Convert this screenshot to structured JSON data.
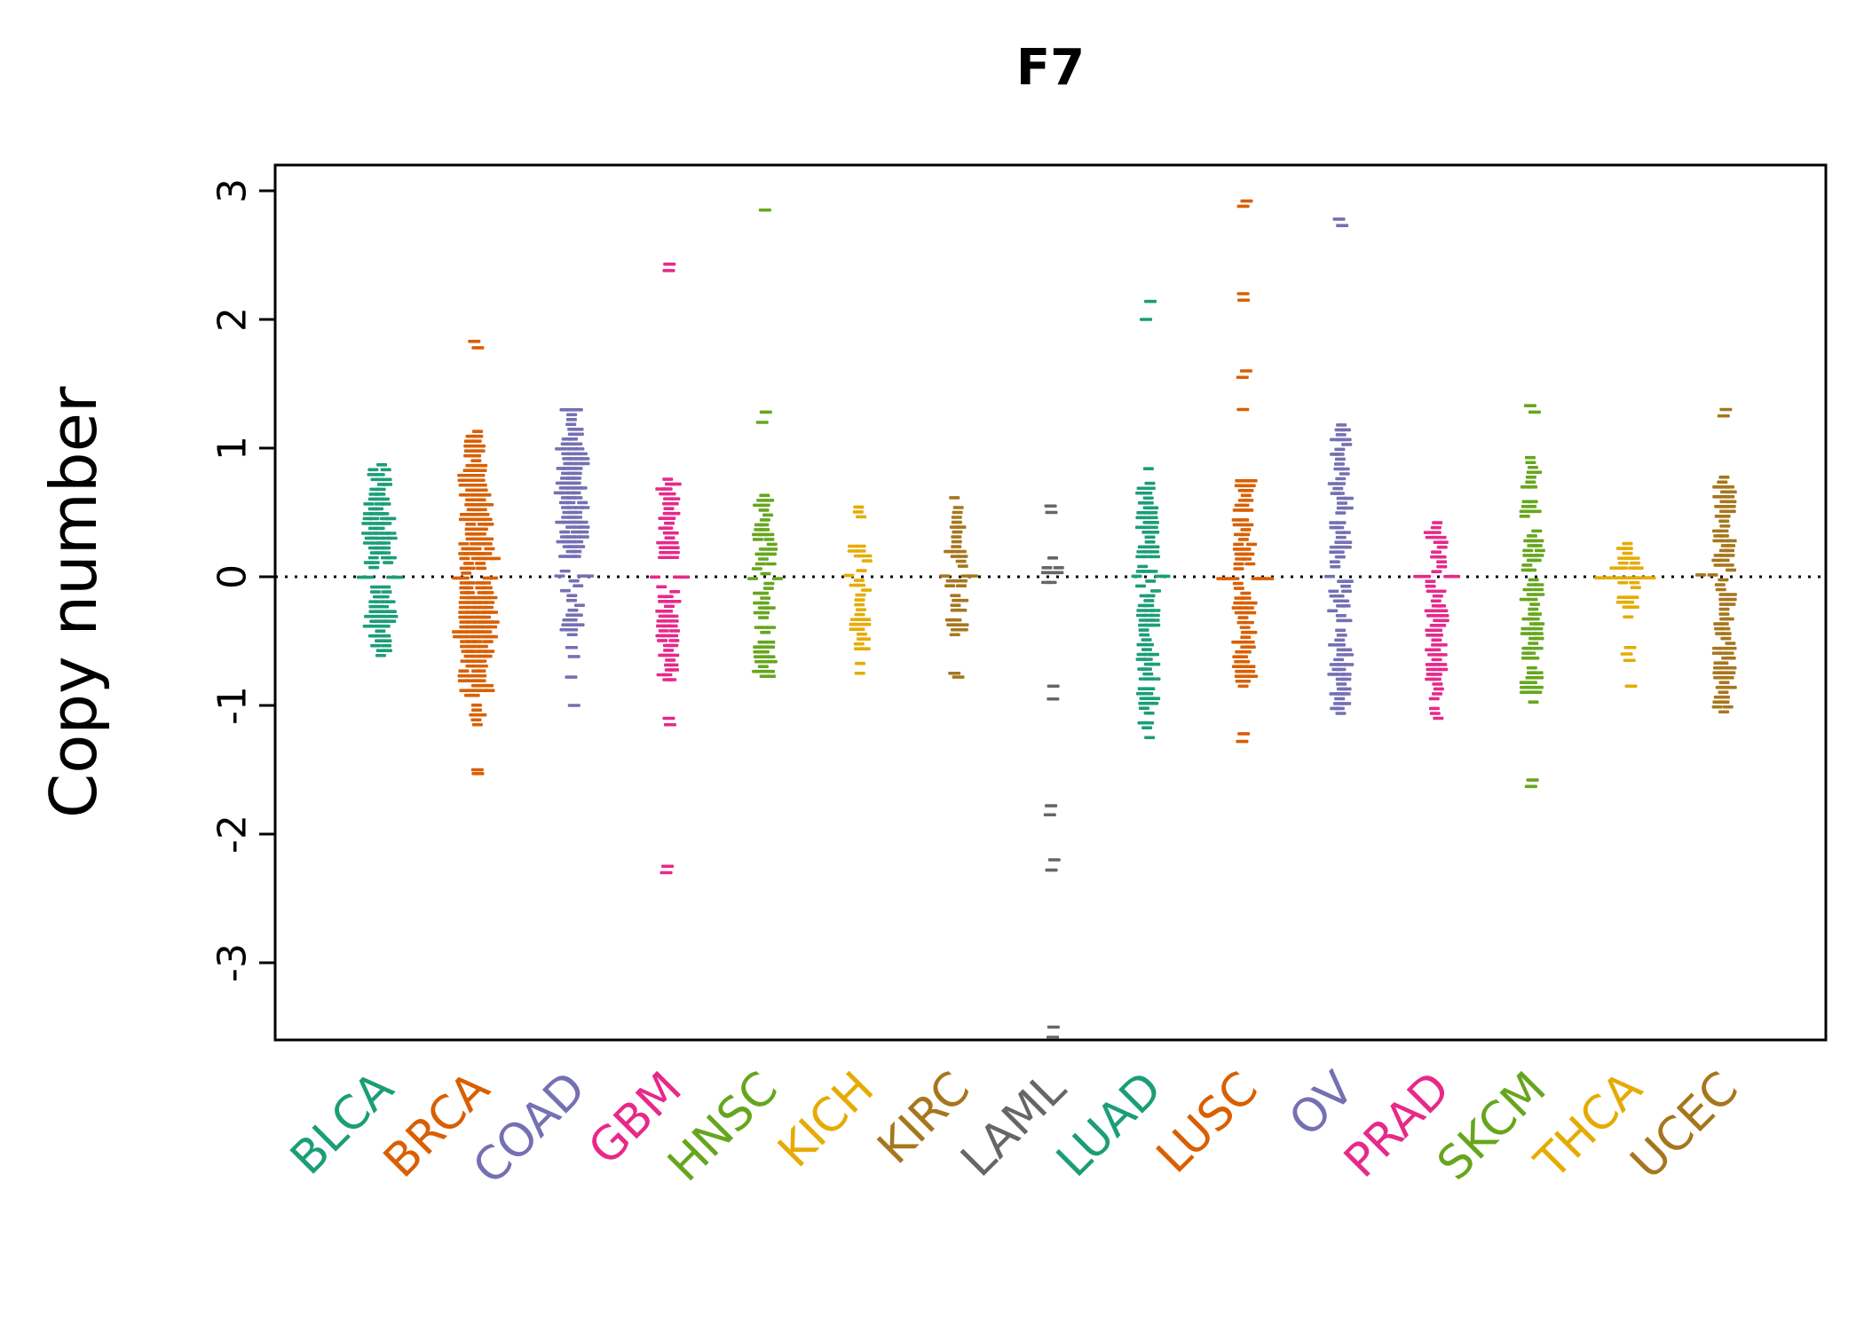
{
  "chart_data": {
    "type": "beeswarm",
    "title": "F7",
    "ylabel": "Copy number",
    "xlabel": "",
    "ylim": [
      -3.6,
      3.2
    ],
    "yticks": [
      3,
      2,
      1,
      0,
      -1,
      -2,
      -3
    ],
    "grid": "off",
    "zero_line": {
      "y": 0,
      "style": "dotted",
      "color": "#000000"
    },
    "notes": "Each group is a beeswarm of per-sample copy-number values; profile = [y value, swarm half-width px], outliers = individual extreme y values.",
    "groups": [
      {
        "label": "BLCA",
        "color": "#1B9E77",
        "zero_width": 22,
        "profile": [
          [
            -0.65,
            5
          ],
          [
            -0.5,
            9
          ],
          [
            -0.3,
            16
          ],
          [
            -0.12,
            18
          ],
          [
            0,
            13
          ],
          [
            0.12,
            16
          ],
          [
            0.3,
            18
          ],
          [
            0.55,
            14
          ],
          [
            0.75,
            9
          ],
          [
            0.92,
            5
          ]
        ],
        "outliers": []
      },
      {
        "label": "BRCA",
        "color": "#D95F02",
        "zero_width": 26,
        "profile": [
          [
            -1.15,
            6
          ],
          [
            -0.95,
            12
          ],
          [
            -0.7,
            16
          ],
          [
            -0.45,
            20
          ],
          [
            -0.2,
            22
          ],
          [
            0,
            15
          ],
          [
            0.15,
            20
          ],
          [
            0.4,
            18
          ],
          [
            0.7,
            14
          ],
          [
            0.95,
            12
          ],
          [
            1.15,
            6
          ]
        ],
        "outliers": [
          1.78,
          1.83,
          -1.5,
          -1.53
        ]
      },
      {
        "label": "COAD",
        "color": "#7570B3",
        "zero_width": 24,
        "profile": [
          [
            -0.45,
            6
          ],
          [
            -0.3,
            9
          ],
          [
            -0.15,
            11
          ],
          [
            0,
            9
          ],
          [
            0.15,
            12
          ],
          [
            0.4,
            16
          ],
          [
            0.7,
            18
          ],
          [
            0.95,
            14
          ],
          [
            1.2,
            10
          ],
          [
            1.4,
            5
          ]
        ],
        "outliers": [
          -0.55,
          -0.62,
          -0.78,
          -1.0
        ]
      },
      {
        "label": "GBM",
        "color": "#E7298A",
        "zero_width": 24,
        "profile": [
          [
            -0.8,
            7
          ],
          [
            -0.6,
            12
          ],
          [
            -0.4,
            13
          ],
          [
            -0.2,
            12
          ],
          [
            0,
            10
          ],
          [
            0.15,
            13
          ],
          [
            0.35,
            12
          ],
          [
            0.55,
            10
          ],
          [
            0.78,
            6
          ]
        ],
        "outliers": [
          2.38,
          2.43,
          -1.1,
          -1.15,
          -2.25,
          -2.3
        ]
      },
      {
        "label": "HNSC",
        "color": "#66A61E",
        "zero_width": 20,
        "profile": [
          [
            -0.85,
            5
          ],
          [
            -0.65,
            9
          ],
          [
            -0.45,
            11
          ],
          [
            -0.25,
            10
          ],
          [
            0,
            7
          ],
          [
            0.15,
            11
          ],
          [
            0.35,
            12
          ],
          [
            0.55,
            8
          ],
          [
            0.65,
            5
          ]
        ],
        "outliers": [
          1.2,
          1.28,
          2.85
        ]
      },
      {
        "label": "KICH",
        "color": "#E6AB02",
        "zero_width": 16,
        "profile": [
          [
            -0.75,
            3
          ],
          [
            -0.6,
            5
          ],
          [
            -0.5,
            9
          ],
          [
            -0.4,
            9
          ],
          [
            -0.3,
            6
          ],
          [
            -0.15,
            6
          ],
          [
            0,
            8
          ],
          [
            0.15,
            8
          ],
          [
            0.3,
            6
          ],
          [
            0.45,
            5
          ],
          [
            0.55,
            3
          ]
        ],
        "outliers": []
      },
      {
        "label": "KIRC",
        "color": "#A6761D",
        "zero_width": 22,
        "profile": [
          [
            -0.45,
            6
          ],
          [
            -0.3,
            8
          ],
          [
            -0.15,
            8
          ],
          [
            0,
            9
          ],
          [
            0.12,
            11
          ],
          [
            0.3,
            9
          ],
          [
            0.45,
            7
          ],
          [
            0.62,
            4
          ]
        ],
        "outliers": [
          -0.75,
          -0.78
        ]
      },
      {
        "label": "LAML",
        "color": "#666666",
        "zero_width": 18,
        "profile": [
          [
            -0.12,
            5
          ],
          [
            -0.05,
            8
          ],
          [
            0,
            9
          ],
          [
            0.08,
            11
          ],
          [
            0.15,
            7
          ],
          [
            0.18,
            4
          ]
        ],
        "outliers": [
          0.5,
          0.55,
          -0.85,
          -0.95,
          -1.78,
          -1.85,
          -2.2,
          -2.28,
          -3.5,
          -3.58
        ]
      },
      {
        "label": "LUAD",
        "color": "#1B9E77",
        "zero_width": 22,
        "profile": [
          [
            -1.25,
            5
          ],
          [
            -1.05,
            8
          ],
          [
            -0.85,
            10
          ],
          [
            -0.6,
            12
          ],
          [
            -0.35,
            13
          ],
          [
            -0.15,
            12
          ],
          [
            0,
            8
          ],
          [
            0.15,
            13
          ],
          [
            0.35,
            12
          ],
          [
            0.55,
            9
          ],
          [
            0.75,
            6
          ],
          [
            0.85,
            4
          ]
        ],
        "outliers": [
          2.0,
          2.14
        ]
      },
      {
        "label": "LUSC",
        "color": "#D95F02",
        "zero_width": 26,
        "profile": [
          [
            -0.85,
            8
          ],
          [
            -0.65,
            11
          ],
          [
            -0.45,
            12
          ],
          [
            -0.25,
            12
          ],
          [
            0,
            10
          ],
          [
            0.15,
            13
          ],
          [
            0.4,
            12
          ],
          [
            0.6,
            10
          ],
          [
            0.8,
            6
          ]
        ],
        "outliers": [
          2.88,
          2.92,
          2.15,
          2.2,
          1.55,
          1.6,
          1.3,
          -1.22,
          -1.28
        ]
      },
      {
        "label": "OV",
        "color": "#7570B3",
        "zero_width": 18,
        "profile": [
          [
            -1.1,
            6
          ],
          [
            -0.95,
            10
          ],
          [
            -0.75,
            10
          ],
          [
            -0.5,
            9
          ],
          [
            -0.25,
            9
          ],
          [
            0,
            10
          ],
          [
            0.2,
            12
          ],
          [
            0.45,
            11
          ],
          [
            0.7,
            10
          ],
          [
            0.95,
            10
          ],
          [
            1.2,
            6
          ]
        ],
        "outliers": [
          2.73,
          2.78
        ]
      },
      {
        "label": "PRAD",
        "color": "#E7298A",
        "zero_width": 24,
        "profile": [
          [
            -1.1,
            4
          ],
          [
            -0.95,
            5
          ],
          [
            -0.75,
            7
          ],
          [
            -0.55,
            9
          ],
          [
            -0.35,
            10
          ],
          [
            -0.15,
            10
          ],
          [
            0,
            8
          ],
          [
            0.12,
            10
          ],
          [
            0.28,
            8
          ],
          [
            0.45,
            5
          ]
        ],
        "outliers": []
      },
      {
        "label": "SKCM",
        "color": "#66A61E",
        "zero_width": 18,
        "profile": [
          [
            -1.05,
            5
          ],
          [
            -0.85,
            8
          ],
          [
            -0.6,
            9
          ],
          [
            -0.35,
            10
          ],
          [
            -0.15,
            9
          ],
          [
            0,
            6
          ],
          [
            0.15,
            10
          ],
          [
            0.4,
            11
          ],
          [
            0.65,
            9
          ],
          [
            0.85,
            6
          ],
          [
            0.95,
            4
          ]
        ],
        "outliers": [
          1.28,
          1.33,
          -1.58,
          -1.63
        ]
      },
      {
        "label": "THCA",
        "color": "#E6AB02",
        "zero_width": 34,
        "zero_solid": true,
        "profile": [
          [
            -0.35,
            4
          ],
          [
            -0.22,
            7
          ],
          [
            -0.1,
            12
          ],
          [
            0,
            18
          ],
          [
            0.1,
            12
          ],
          [
            0.22,
            7
          ],
          [
            0.35,
            4
          ]
        ],
        "outliers": [
          -0.55,
          -0.6,
          -0.65,
          -0.85
        ]
      },
      {
        "label": "UCEC",
        "color": "#A6761D",
        "zero_width": 26,
        "profile": [
          [
            -1.05,
            6
          ],
          [
            -0.85,
            9
          ],
          [
            -0.6,
            10
          ],
          [
            -0.35,
            11
          ],
          [
            -0.15,
            11
          ],
          [
            0,
            8
          ],
          [
            0.15,
            11
          ],
          [
            0.4,
            10
          ],
          [
            0.6,
            8
          ],
          [
            0.8,
            5
          ]
        ],
        "outliers": [
          1.25,
          1.3
        ]
      }
    ]
  }
}
